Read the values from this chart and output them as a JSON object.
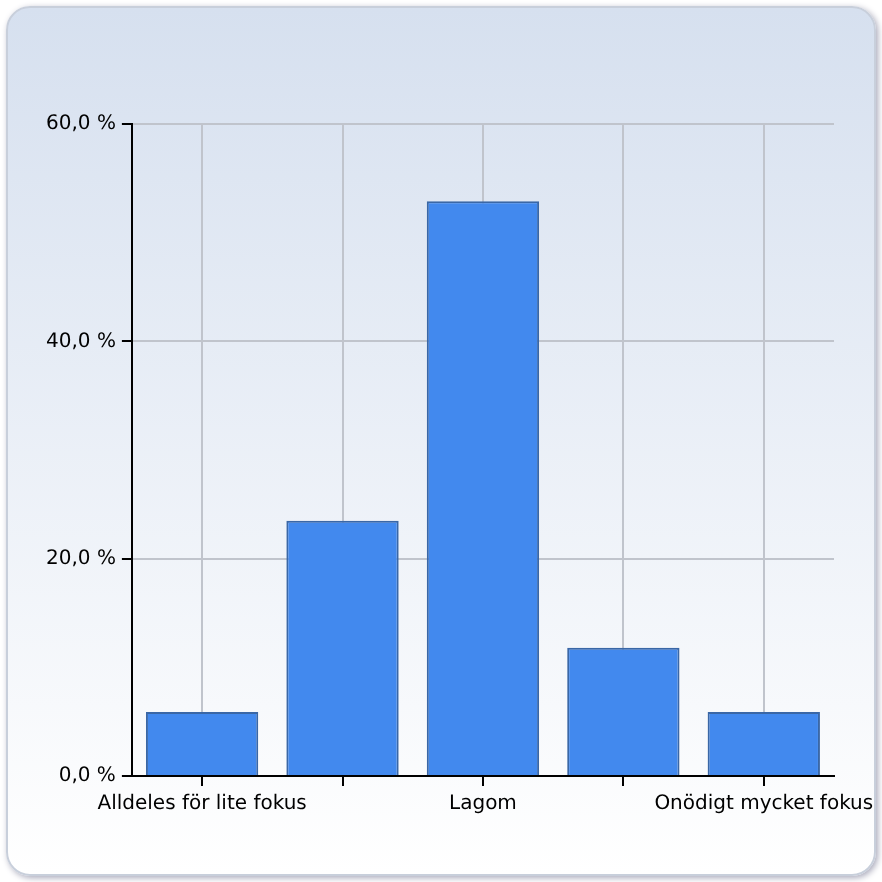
{
  "chart_data": {
    "type": "bar",
    "categories": [
      "Alldeles för lite fokus",
      null,
      "Lagom",
      null,
      "Onödigt mycket fokus"
    ],
    "values": [
      5.9,
      23.5,
      52.9,
      11.8,
      5.9
    ],
    "color": "#4289ee",
    "ylim": [
      0,
      60
    ],
    "yticks": [
      {
        "value": 0,
        "label": "0,0 %"
      },
      {
        "value": 20,
        "label": "20,0 %"
      },
      {
        "value": 40,
        "label": "40,0 %"
      },
      {
        "value": 60,
        "label": "60,0 %"
      }
    ],
    "grid": true,
    "legend": false
  }
}
